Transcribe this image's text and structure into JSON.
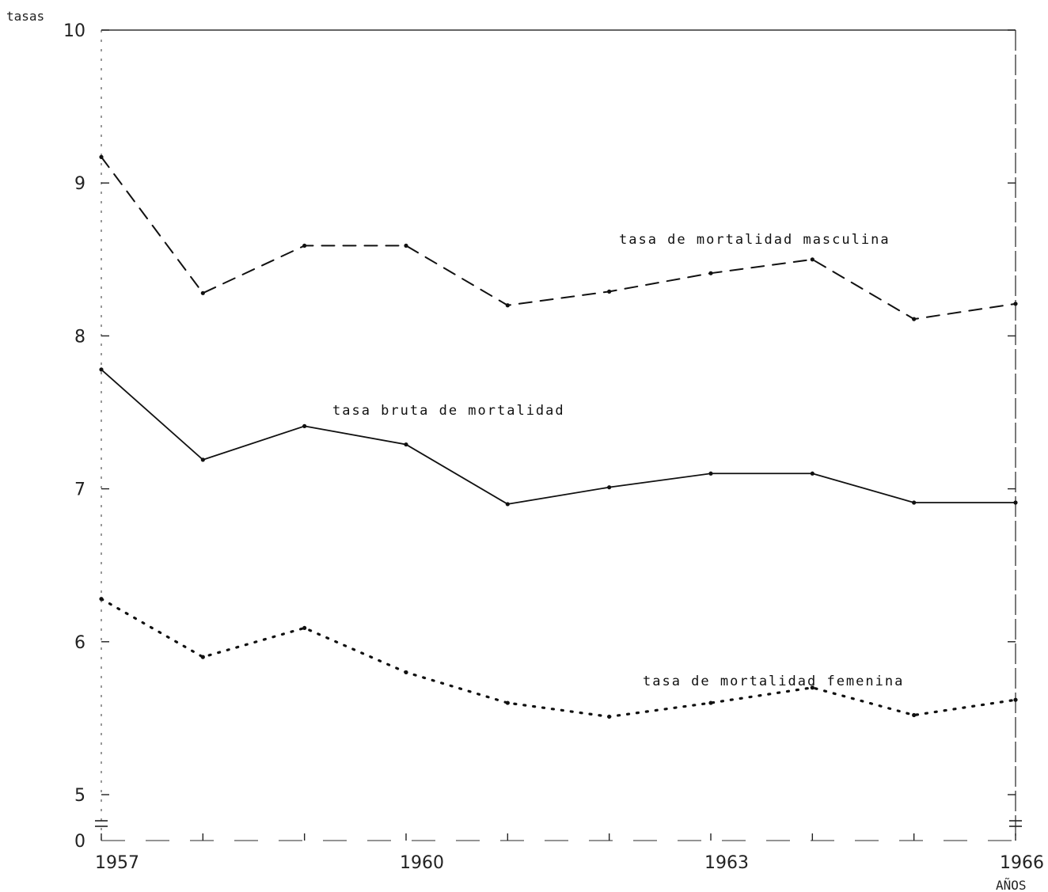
{
  "chart_data": {
    "type": "line",
    "ylabel": "tasas",
    "xlabel": "AÑOS",
    "x": [
      1957,
      1958,
      1959,
      1960,
      1961,
      1962,
      1963,
      1964,
      1965,
      1966
    ],
    "x_tick_labels": [
      "1957",
      "1960",
      "1963",
      "1966"
    ],
    "y_tick_labels": [
      "0",
      "5",
      "6",
      "7",
      "8",
      "9",
      "10"
    ],
    "ylim": [
      5,
      10
    ],
    "y_axis_break": true,
    "grid": false,
    "series": [
      {
        "name": "tasa de mortalidad masculina",
        "style": "dashed",
        "values": [
          9.17,
          8.28,
          8.59,
          8.59,
          8.2,
          8.29,
          8.41,
          8.5,
          8.11,
          8.21
        ]
      },
      {
        "name": "tasa bruta de mortalidad",
        "style": "solid",
        "values": [
          7.78,
          7.19,
          7.41,
          7.29,
          6.9,
          7.01,
          7.1,
          7.1,
          6.91,
          6.91
        ]
      },
      {
        "name": "tasa de mortalidad femenina",
        "style": "dotted",
        "values": [
          6.28,
          5.9,
          6.09,
          5.8,
          5.6,
          5.51,
          5.6,
          5.7,
          5.52,
          5.62
        ]
      }
    ]
  }
}
